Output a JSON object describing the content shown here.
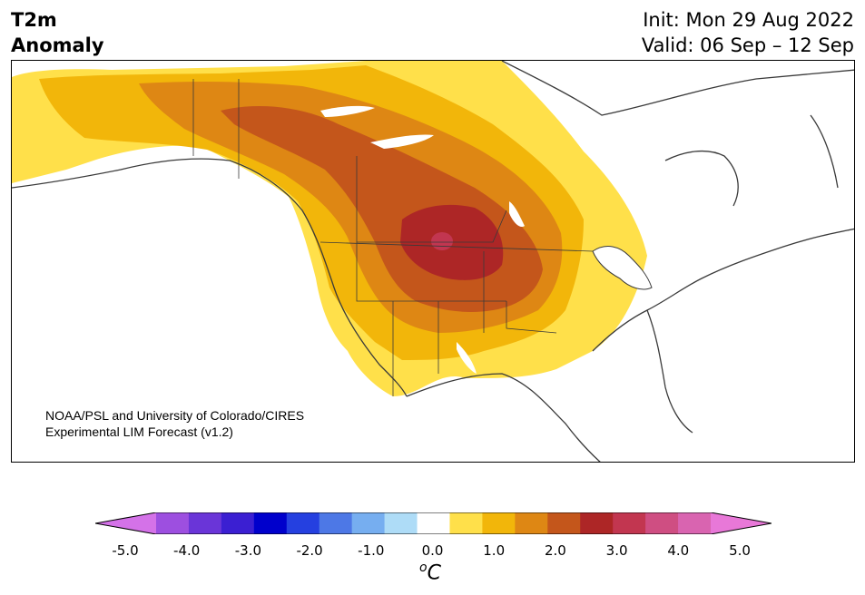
{
  "header": {
    "variable_line1": "T2m",
    "variable_line2": "Anomaly",
    "init": "Init: Mon 29 Aug 2022",
    "valid": "Valid: 06 Sep – 12 Sep"
  },
  "credit": {
    "line1": "NOAA/PSL and University of Colorado/CIRES",
    "line2": "Experimental LIM Forecast (v1.2)"
  },
  "colorbar": {
    "ticks": [
      "-5.0",
      "-4.0",
      "-3.0",
      "-2.0",
      "-1.0",
      "0.0",
      "1.0",
      "2.0",
      "3.0",
      "4.0",
      "5.0"
    ],
    "unit_symbol": "o",
    "unit_letter": "C",
    "colors": [
      "#d472e8",
      "#9d4fe0",
      "#6a35d8",
      "#3b1fd2",
      "#0000cc",
      "#2540e0",
      "#4d78e6",
      "#76aef0",
      "#aedcf7",
      "#ffffff",
      "#ffe04a",
      "#f2b60a",
      "#de8714",
      "#c4561b",
      "#ad2626",
      "#c23650",
      "#cf4e82",
      "#d964b0",
      "#e878d8"
    ]
  },
  "map": {
    "region": "North America",
    "colors": {
      "land": "#ffffff",
      "coast": "#3a3a3a",
      "anom_0_5": "#ffe04a",
      "anom_1_0": "#f2b60a",
      "anom_1_5": "#de8714",
      "anom_2_0": "#c4561b",
      "anom_2_5": "#ad2626",
      "anom_3_0": "#c23650"
    }
  }
}
